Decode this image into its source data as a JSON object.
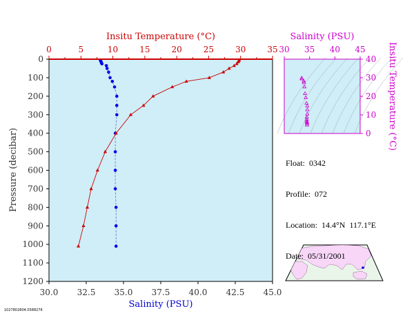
{
  "colors": {
    "panel_bg": "#cfeef7",
    "temp": "#cc0000",
    "salinity": "#0000ee",
    "ts": "#cc00cc",
    "axis": "#000000",
    "land": "#f7d6f7",
    "land_edge": "#996699",
    "ocean": "#eaf5ea"
  },
  "info": {
    "float": "Float:  0342",
    "profile": "Profile:  072",
    "location": "Location:  14.4°N  117.1°E",
    "date": "Date:  05/31/2001"
  },
  "footnote": "1027802804.0588276",
  "chart_data": [
    {
      "type": "line",
      "title": "",
      "top_axis": {
        "label": "Insitu Temperature (°C)",
        "range": [
          0,
          35
        ],
        "ticks": [
          "0",
          "5",
          "10",
          "15",
          "20",
          "25",
          "30",
          "35"
        ]
      },
      "bottom_axis": {
        "label": "Salinity (PSU)",
        "range": [
          30.0,
          45.0
        ],
        "ticks": [
          "30.0",
          "32.5",
          "35.0",
          "37.5",
          "40.0",
          "42.5",
          "45.0"
        ]
      },
      "left_axis": {
        "label": "Pressure (decibar)",
        "range": [
          0,
          1200
        ],
        "reversed": true,
        "ticks": [
          "0",
          "100",
          "200",
          "300",
          "400",
          "500",
          "600",
          "700",
          "800",
          "900",
          "1000",
          "1100",
          "1200"
        ]
      },
      "series": [
        {
          "axis": "temperature",
          "marker": "triangle",
          "points": [
            [
              29.8,
              5
            ],
            [
              29.7,
              10
            ],
            [
              29.6,
              15
            ],
            [
              29.4,
              25
            ],
            [
              29.0,
              35
            ],
            [
              28.2,
              50
            ],
            [
              27.3,
              70
            ],
            [
              25.1,
              100
            ],
            [
              21.5,
              120
            ],
            [
              19.3,
              150
            ],
            [
              16.3,
              200
            ],
            [
              14.8,
              250
            ],
            [
              12.8,
              300
            ],
            [
              10.5,
              400
            ],
            [
              8.8,
              500
            ],
            [
              7.6,
              600
            ],
            [
              6.6,
              700
            ],
            [
              6.0,
              800
            ],
            [
              5.4,
              900
            ],
            [
              4.6,
              1010
            ]
          ]
        },
        {
          "axis": "salinity",
          "marker": "circle",
          "points": [
            [
              33.45,
              5
            ],
            [
              33.47,
              10
            ],
            [
              33.5,
              15
            ],
            [
              33.52,
              20
            ],
            [
              33.55,
              25
            ],
            [
              33.85,
              35
            ],
            [
              33.9,
              50
            ],
            [
              34.0,
              70
            ],
            [
              34.1,
              100
            ],
            [
              34.25,
              120
            ],
            [
              34.4,
              150
            ],
            [
              34.55,
              200
            ],
            [
              34.55,
              250
            ],
            [
              34.55,
              300
            ],
            [
              34.45,
              400
            ],
            [
              34.45,
              500
            ],
            [
              34.45,
              600
            ],
            [
              34.45,
              700
            ],
            [
              34.5,
              800
            ],
            [
              34.5,
              900
            ],
            [
              34.5,
              1010
            ]
          ]
        }
      ]
    },
    {
      "type": "scatter",
      "title": "",
      "top_axis": {
        "label": "Salinity (PSU)",
        "range": [
          30,
          45
        ],
        "ticks": [
          "30",
          "35",
          "40",
          "45"
        ]
      },
      "right_axis": {
        "label": "Insitu Temperature (°C)",
        "range": [
          0,
          40
        ],
        "ticks": [
          "0",
          "10",
          "20",
          "30",
          "40"
        ]
      },
      "points": [
        [
          33.45,
          29.8
        ],
        [
          33.5,
          29.4
        ],
        [
          33.85,
          28.2
        ],
        [
          33.9,
          27.3
        ],
        [
          34.0,
          25.1
        ],
        [
          34.1,
          21.5
        ],
        [
          34.25,
          19.3
        ],
        [
          34.4,
          16.3
        ],
        [
          34.55,
          14.8
        ],
        [
          34.55,
          12.8
        ],
        [
          34.55,
          10.5
        ],
        [
          34.45,
          8.8
        ],
        [
          34.45,
          7.6
        ],
        [
          34.45,
          6.6
        ],
        [
          34.5,
          6.0
        ],
        [
          34.5,
          5.4
        ],
        [
          34.5,
          4.6
        ]
      ]
    }
  ]
}
